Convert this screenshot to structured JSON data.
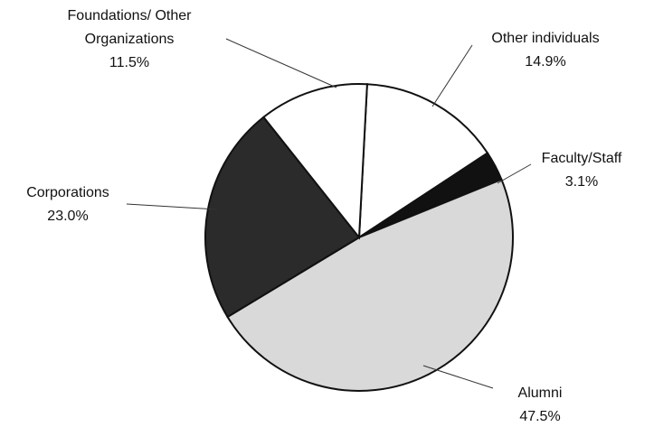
{
  "chart_data": {
    "type": "pie",
    "categories": [
      "Other individuals",
      "Faculty/Staff",
      "Alumni",
      "Corporations",
      "Foundations/ Other Organizations"
    ],
    "values": [
      14.9,
      3.1,
      47.5,
      23.0,
      11.5
    ],
    "value_labels": [
      "14.9%",
      "3.1%",
      "47.5%",
      "23.0%",
      "11.5%"
    ],
    "colors": [
      "#ffffff",
      "#111111",
      "#d9d9d9",
      "#2b2b2b",
      "#ffffff"
    ]
  }
}
